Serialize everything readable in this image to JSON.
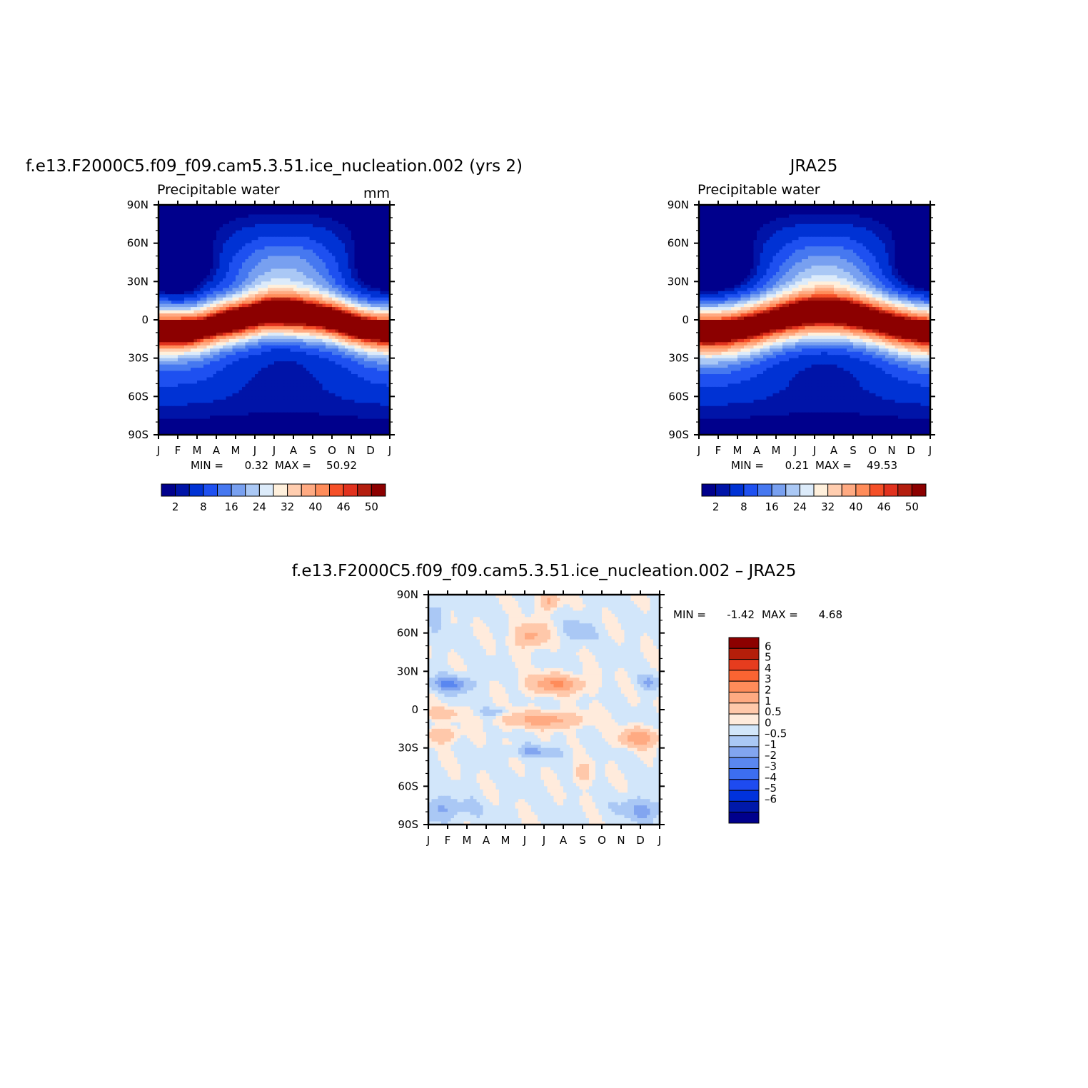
{
  "palettes": {
    "field": [
      "#00008c",
      "#0014a8",
      "#0032d4",
      "#1e50f0",
      "#4678f0",
      "#78a0f0",
      "#aac8f5",
      "#dcebfa",
      "#fff0dc",
      "#ffcdaf",
      "#ffaa82",
      "#ff8c5a",
      "#f55028",
      "#e1321e",
      "#b41e0f",
      "#8c0000"
    ],
    "diff": [
      "#00008c",
      "#0019aa",
      "#0032dc",
      "#1e4bf0",
      "#3c6ef0",
      "#5a87f0",
      "#82a5f0",
      "#aac8f5",
      "#d2e6fa",
      "#ffebdc",
      "#ffc8aa",
      "#ffaa82",
      "#ff8c5a",
      "#fa6432",
      "#e63c1e",
      "#b41e0a",
      "#8c0000"
    ]
  },
  "chart_data": [
    {
      "id": "model",
      "type": "heatmap",
      "title": "f.e13.F2000C5.f09_f09.cam5.3.51.ice_nucleation.002 (yrs 2)",
      "subtitle": "Precipitable water",
      "units": "mm",
      "x_ticks": [
        "J",
        "F",
        "M",
        "A",
        "M",
        "J",
        "J",
        "A",
        "S",
        "O",
        "N",
        "D",
        "J"
      ],
      "y_ticks": [
        "90N",
        "60N",
        "30N",
        "0",
        "30S",
        "60S",
        "90S"
      ],
      "xlim": [
        0,
        12
      ],
      "ylim": [
        -90,
        90
      ],
      "min_label": "MIN =",
      "min_value": "0.32",
      "max_label": "MAX =",
      "max_value": "50.92",
      "min": 0.32,
      "max": 50.92,
      "levels": [
        0,
        2,
        4,
        8,
        12,
        16,
        20,
        24,
        28,
        32,
        36,
        40,
        44,
        46,
        48,
        50
      ],
      "colorbar_labels": [
        "2",
        "8",
        "16",
        "24",
        "32",
        "40",
        "46",
        "50"
      ],
      "colorbar_label_index": [
        1,
        3,
        5,
        7,
        9,
        11,
        13,
        15
      ]
    },
    {
      "id": "obs",
      "type": "heatmap",
      "title": "JRA25",
      "subtitle": "Precipitable water",
      "x_ticks": [
        "J",
        "F",
        "M",
        "A",
        "M",
        "J",
        "J",
        "A",
        "S",
        "O",
        "N",
        "D",
        "J"
      ],
      "y_ticks": [
        "90N",
        "60N",
        "30N",
        "0",
        "30S",
        "60S",
        "90S"
      ],
      "xlim": [
        0,
        12
      ],
      "ylim": [
        -90,
        90
      ],
      "min_label": "MIN =",
      "min_value": "0.21",
      "max_label": "MAX =",
      "max_value": "49.53",
      "min": 0.21,
      "max": 49.53,
      "levels": [
        0,
        2,
        4,
        8,
        12,
        16,
        20,
        24,
        28,
        32,
        36,
        40,
        44,
        46,
        48,
        50
      ],
      "colorbar_labels": [
        "2",
        "8",
        "16",
        "24",
        "32",
        "40",
        "46",
        "50"
      ],
      "colorbar_label_index": [
        1,
        3,
        5,
        7,
        9,
        11,
        13,
        15
      ]
    },
    {
      "id": "diff",
      "type": "heatmap",
      "title": "f.e13.F2000C5.f09_f09.cam5.3.51.ice_nucleation.002 – JRA25",
      "x_ticks": [
        "J",
        "F",
        "M",
        "A",
        "M",
        "J",
        "J",
        "A",
        "S",
        "O",
        "N",
        "D",
        "J"
      ],
      "y_ticks": [
        "90N",
        "60N",
        "30N",
        "0",
        "30S",
        "60S",
        "90S"
      ],
      "xlim": [
        0,
        12
      ],
      "ylim": [
        -90,
        90
      ],
      "min_label": "MIN =",
      "min_value": "-1.42",
      "max_label": "MAX =",
      "max_value": "4.68",
      "min": -1.42,
      "max": 4.68,
      "levels": [
        -6,
        -5,
        -4,
        -3,
        -2,
        -1,
        -0.5,
        0,
        0.5,
        1,
        2,
        3,
        4,
        5,
        6
      ],
      "colorbar_labels": [
        "6",
        "5",
        "4",
        "3",
        "2",
        "1",
        "0.5",
        "0",
        "–0.5",
        "–1",
        "–2",
        "–3",
        "–4",
        "–5",
        "–6"
      ]
    }
  ]
}
